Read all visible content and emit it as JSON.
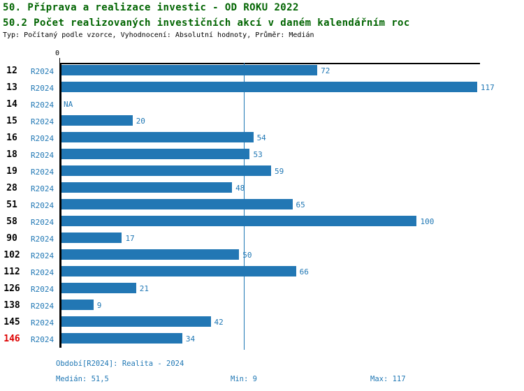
{
  "header": {
    "title_line1": "50. Příprava a realizace investic - OD ROKU 2022",
    "title_line2": "50.2 Počet realizovaných investičních akcí v daném kalendářním roc",
    "subtitle": "Typ: Počítaný podle vzorce, Vyhodnocení: Absolutní hodnoty, Průměr: Medián"
  },
  "chart_data": {
    "type": "bar",
    "orientation": "horizontal",
    "title": "50.2 Počet realizovaných investičních akcí v daném kalendářním roc",
    "series_label": "R2024",
    "categories": [
      "12",
      "13",
      "14",
      "15",
      "16",
      "18",
      "19",
      "28",
      "51",
      "58",
      "90",
      "102",
      "112",
      "126",
      "138",
      "145",
      "146"
    ],
    "values": [
      72,
      117,
      null,
      20,
      54,
      53,
      59,
      48,
      65,
      100,
      17,
      50,
      66,
      21,
      9,
      42,
      34
    ],
    "na_label": "NA",
    "axis_zero_tick": "0",
    "xlim": [
      0,
      118
    ],
    "median_value": 51.5,
    "highlight_category": "146",
    "legend_position": "none",
    "grid": false,
    "colors": {
      "bar": "#2277b4",
      "label": "#1f77b4",
      "highlight": "#dd0000",
      "title": "#006400"
    }
  },
  "footer": {
    "period": "Období[R2024]: Realita - 2024",
    "median": "Medián: 51,5",
    "min": "Min: 9",
    "max": "Max: 117"
  }
}
